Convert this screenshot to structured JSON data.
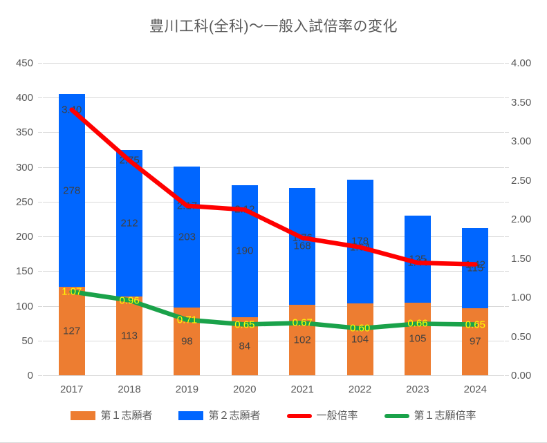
{
  "chart_data": {
    "type": "combo",
    "title": "豊川工科(全科)～一般入試倍率の変化",
    "categories": [
      "2017",
      "2018",
      "2019",
      "2020",
      "2021",
      "2022",
      "2023",
      "2024"
    ],
    "series": [
      {
        "name": "第１志願者",
        "kind": "bar",
        "axis": "left",
        "color": "#ED7D31",
        "values": [
          127,
          113,
          98,
          84,
          102,
          104,
          105,
          97
        ],
        "data_labels": [
          "127",
          "113",
          "98",
          "84",
          "102",
          "104",
          "105",
          "97"
        ],
        "label_color": "#404040"
      },
      {
        "name": "第２志願者",
        "kind": "bar",
        "axis": "left",
        "color": "#0066FF",
        "values": [
          278,
          212,
          203,
          190,
          168,
          178,
          125,
          115
        ],
        "data_labels": [
          "278",
          "212",
          "203",
          "190",
          "168",
          "178",
          "125",
          "115"
        ],
        "label_color": "#404040"
      },
      {
        "name": "一般倍率",
        "kind": "line",
        "axis": "right",
        "color": "#FF0000",
        "values": [
          3.4,
          2.75,
          2.17,
          2.12,
          1.76,
          1.64,
          1.44,
          1.42
        ],
        "data_labels": [
          "3.40",
          "2.75",
          "2.17",
          "2.12",
          "1.76",
          "1.64",
          "1.44",
          "1.42"
        ],
        "label_color": "#404040"
      },
      {
        "name": "第１志願倍率",
        "kind": "line",
        "axis": "right",
        "color": "#1AA24A",
        "values": [
          1.07,
          0.96,
          0.71,
          0.65,
          0.67,
          0.6,
          0.66,
          0.65
        ],
        "data_labels": [
          "1.07",
          "0.96",
          "0.71",
          "0.65",
          "0.67",
          "0.60",
          "0.66",
          "0.65"
        ],
        "label_color": "#FFFF00"
      }
    ],
    "left_axis": {
      "min": 0,
      "max": 450,
      "step": 50,
      "tick_labels": [
        "0",
        "50",
        "100",
        "150",
        "200",
        "250",
        "300",
        "350",
        "400",
        "450"
      ]
    },
    "right_axis": {
      "min": 0,
      "max": 4,
      "step": 0.5,
      "tick_labels": [
        "0.00",
        "0.50",
        "1.00",
        "1.50",
        "2.00",
        "2.50",
        "3.00",
        "3.50",
        "4.00"
      ]
    },
    "grid": true,
    "legend_position": "bottom",
    "colors": {
      "grid": "#D9D9D9",
      "axis_text": "#595959",
      "title_text": "#595959"
    }
  }
}
